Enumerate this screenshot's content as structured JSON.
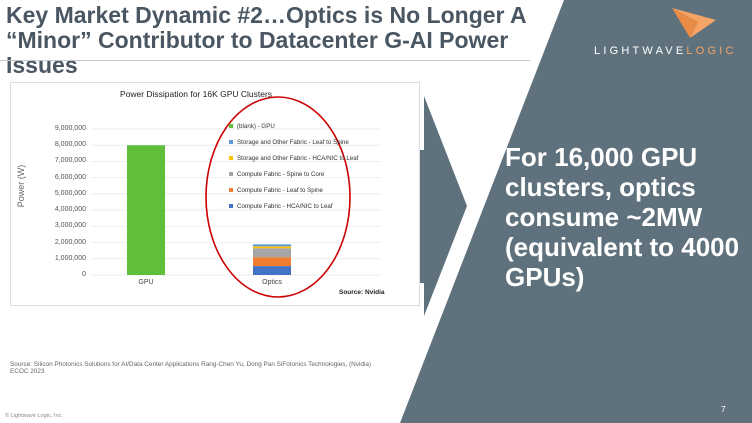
{
  "slide": {
    "title": "Key Market Dynamic #2…Optics is No Longer A “Minor” Contributor to Datacenter G-AI Power Issues",
    "logo_text_a": "LIGHTWAVE",
    "logo_text_b": "LOGIC",
    "callout": "For 16,000 GPU clusters, optics consume ~2MW (equivalent to 4000 GPUs)",
    "reference_line1": "Source: Silicon Photonics Solutions for AI/Data Center Applications Rang-Chen Yu, Dong Pan SiFotonics Technologies, (Nvidia)",
    "reference_line2": "ECOC 2023",
    "copyright": "© Lightwave Logic, Inc.",
    "page_number": "7",
    "colors": {
      "background_panel": "#5f717c",
      "title_text": "#4a5763",
      "logo_accent": "#f5a465",
      "highlight_ellipse": "#cc0000"
    }
  },
  "chart_data": {
    "type": "bar",
    "stacked": true,
    "title": "Power Dissipation for 16K GPU Clusters",
    "ylabel": "Power (W)",
    "xlabel": "",
    "ylim": [
      0,
      9000000
    ],
    "yticks": [
      "9,000,000",
      "8,000,000",
      "7,000,000",
      "6,000,000",
      "5,000,000",
      "4,000,000",
      "3,000,000",
      "2,000,000",
      "1,000,000",
      "0"
    ],
    "categories": [
      "GPU",
      "Optics"
    ],
    "series": [
      {
        "name": "Compute Fabric - HCA/NIC to Leaf",
        "color": "#4472c4",
        "values": [
          0,
          550000
        ]
      },
      {
        "name": "Compute Fabric - Leaf to Spine",
        "color": "#ed7d31",
        "values": [
          0,
          550000
        ]
      },
      {
        "name": "Compute Fabric - Spine to Core",
        "color": "#a5a5a5",
        "values": [
          0,
          550000
        ]
      },
      {
        "name": "Storage and Other Fabric - HCA/NIC to Leaf",
        "color": "#ffc000",
        "values": [
          0,
          120000
        ]
      },
      {
        "name": "Storage and Other Fabric - Leaf to Spine",
        "color": "#5b9bd5",
        "values": [
          0,
          120000
        ]
      },
      {
        "name": "(blank) - GPU",
        "color": "#5fbf3a",
        "values": [
          8000000,
          0
        ]
      }
    ],
    "legend_order": [
      "(blank) - GPU",
      "Storage and Other Fabric - Leaf to Spine",
      "Storage and Other Fabric - HCA/NIC to Leaf",
      "Compute Fabric - Spine to Core",
      "Compute Fabric - Leaf to Spine",
      "Compute Fabric - HCA/NIC to Leaf"
    ],
    "legend_placement": "center",
    "grid": true,
    "source": "Source: Nvidia"
  }
}
